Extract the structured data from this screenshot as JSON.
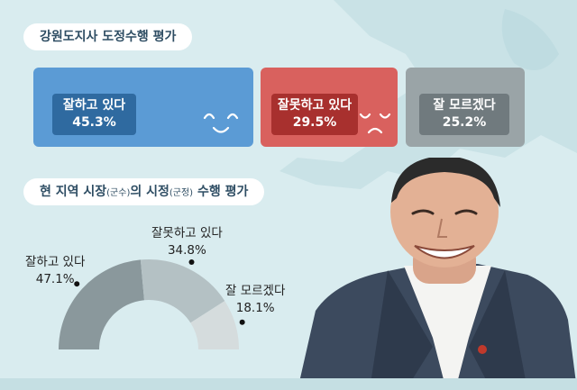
{
  "section1": {
    "title": "강원도지사 도정수행 평가",
    "items": [
      {
        "label": "잘하고 있다",
        "value": "45.3%",
        "color": "#5b9bd5"
      },
      {
        "label": "잘못하고 있다",
        "value": "29.5%",
        "color": "#d9615e"
      },
      {
        "label": "잘 모르겠다",
        "value": "25.2%",
        "color": "#9aa4a7"
      }
    ]
  },
  "section2": {
    "title_main": "현 지역 시장",
    "title_p1": "(군수)",
    "title_mid": "의 시정",
    "title_p2": "(군정)",
    "title_end": " 수행 평가"
  },
  "chart_data": {
    "type": "pie",
    "style": "half-donut",
    "title": "현 지역 시장(군수)의 시정(군정) 수행 평가",
    "categories": [
      "잘하고 있다",
      "잘못하고 있다",
      "잘 모르겠다"
    ],
    "values": [
      47.1,
      34.8,
      18.1
    ],
    "value_labels": [
      "47.1%",
      "34.8%",
      "18.1%"
    ],
    "colors": [
      "#8a989c",
      "#b4c1c4",
      "#d5dcdd"
    ]
  },
  "icons": {
    "good": "smiling-face-icon",
    "bad": "frowning-face-icon",
    "photo": "smiling-man-portrait"
  }
}
